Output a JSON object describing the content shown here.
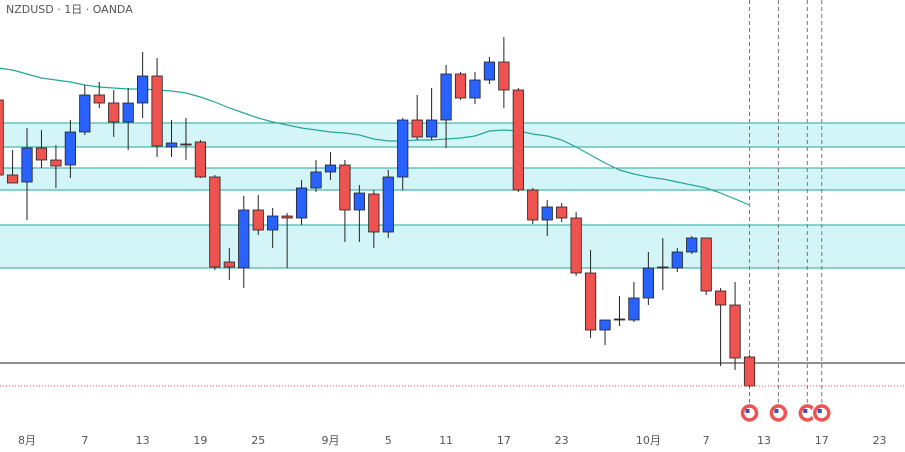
{
  "chart_data": {
    "type": "candlestick",
    "title": "NZDUSD · 1日 · OANDA",
    "x": [
      -2,
      -1,
      0,
      1,
      2,
      3,
      4,
      5,
      6,
      7,
      8,
      9,
      10,
      11,
      12,
      13,
      14,
      15,
      16,
      17,
      18,
      19,
      20,
      21,
      22,
      23,
      24,
      25,
      26,
      27,
      28,
      29,
      30,
      31,
      32,
      33,
      34,
      35,
      36,
      37,
      38,
      39,
      40,
      41,
      42,
      43,
      44,
      45,
      46,
      47,
      48,
      49,
      50
    ],
    "open": [
      325,
      250,
      243,
      277,
      265,
      260,
      293,
      330,
      322,
      303,
      322,
      349,
      278,
      281,
      283,
      248,
      163,
      157,
      215,
      195,
      209,
      207,
      237,
      253,
      260,
      215,
      231,
      193,
      248,
      305,
      288,
      305,
      351,
      327,
      345,
      363,
      335,
      235,
      205,
      218,
      207,
      152,
      95,
      105,
      105,
      127,
      157,
      157,
      173,
      187,
      134,
      120,
      68
    ],
    "high": [
      325,
      275,
      297,
      295,
      280,
      305,
      340,
      343,
      335,
      337,
      373,
      367,
      305,
      307,
      285,
      250,
      177,
      229,
      230,
      217,
      212,
      245,
      265,
      273,
      265,
      240,
      235,
      255,
      307,
      330,
      337,
      360,
      353,
      353,
      368,
      388,
      337,
      237,
      225,
      222,
      213,
      175,
      105,
      129,
      143,
      173,
      187,
      177,
      189,
      187,
      137,
      143,
      70
    ],
    "low": [
      247,
      242,
      205,
      257,
      237,
      247,
      290,
      317,
      288,
      275,
      307,
      268,
      268,
      265,
      247,
      155,
      145,
      137,
      190,
      177,
      157,
      200,
      233,
      245,
      183,
      183,
      177,
      187,
      235,
      285,
      285,
      277,
      325,
      321,
      341,
      317,
      233,
      201,
      189,
      203,
      149,
      87,
      80,
      99,
      103,
      120,
      135,
      153,
      171,
      130,
      59,
      55,
      38
    ],
    "close": [
      250,
      242,
      277,
      265,
      259,
      293,
      330,
      322,
      303,
      322,
      349,
      279,
      282,
      280,
      248,
      158,
      158,
      215,
      195,
      209,
      207,
      237,
      253,
      260,
      215,
      232,
      193,
      248,
      305,
      288,
      305,
      351,
      327,
      345,
      363,
      335,
      235,
      205,
      218,
      207,
      152,
      95,
      105,
      106,
      127,
      157,
      158,
      173,
      187,
      134,
      120,
      67,
      39
    ],
    "ma": [
      357,
      355,
      351,
      347,
      345,
      343,
      340,
      338,
      337,
      336,
      336,
      335,
      334,
      332,
      328,
      323,
      317,
      312,
      307,
      303,
      300,
      297,
      295,
      293,
      292,
      290,
      286,
      284,
      284,
      285,
      285,
      286,
      287,
      289,
      294,
      295,
      294,
      291,
      289,
      285,
      278,
      270,
      262,
      255,
      251,
      248,
      246,
      243,
      240,
      237,
      232,
      226,
      220
    ],
    "up_color": "#2962ff",
    "down_color": "#ef5350",
    "ma_color": "#26a69a",
    "zones": [
      [
        278,
        302
      ],
      [
        235,
        257
      ],
      [
        157,
        200
      ]
    ],
    "levels": [
      62
    ],
    "events": [
      50,
      52,
      54,
      55
    ],
    "xlim": [
      -1.87,
      60.76
    ],
    "ylim": [
      0,
      425
    ],
    "xticks": [
      {
        "value": 0,
        "label": "8月"
      },
      {
        "value": 4,
        "label": "7"
      },
      {
        "value": 8,
        "label": "13"
      },
      {
        "value": 12,
        "label": "19"
      },
      {
        "value": 16,
        "label": "25"
      },
      {
        "value": 21,
        "label": "9月"
      },
      {
        "value": 25,
        "label": "5"
      },
      {
        "value": 29,
        "label": "11"
      },
      {
        "value": 33,
        "label": "17"
      },
      {
        "value": 37,
        "label": "23"
      },
      {
        "value": 43,
        "label": "10月"
      },
      {
        "value": 47,
        "label": "7"
      },
      {
        "value": 51,
        "label": "13"
      },
      {
        "value": 55,
        "label": "17"
      },
      {
        "value": 59,
        "label": "23"
      }
    ]
  }
}
